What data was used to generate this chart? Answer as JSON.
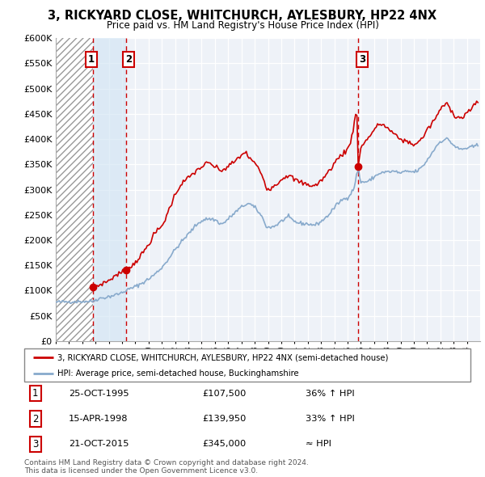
{
  "title": "3, RICKYARD CLOSE, WHITCHURCH, AYLESBURY, HP22 4NX",
  "subtitle": "Price paid vs. HM Land Registry's House Price Index (HPI)",
  "property_label": "3, RICKYARD CLOSE, WHITCHURCH, AYLESBURY, HP22 4NX (semi-detached house)",
  "hpi_label": "HPI: Average price, semi-detached house, Buckinghamshire",
  "footer": "Contains HM Land Registry data © Crown copyright and database right 2024.\nThis data is licensed under the Open Government Licence v3.0.",
  "transactions": [
    {
      "num": 1,
      "date": "25-OCT-1995",
      "price": 107500,
      "year": 1995.82,
      "note": "36% ↑ HPI"
    },
    {
      "num": 2,
      "date": "15-APR-1998",
      "price": 139950,
      "year": 1998.29,
      "note": "33% ↑ HPI"
    },
    {
      "num": 3,
      "date": "21-OCT-2015",
      "price": 345000,
      "year": 2015.81,
      "note": "≈ HPI"
    }
  ],
  "ylim": [
    0,
    600000
  ],
  "xlim_start": 1993.0,
  "xlim_end": 2025.0,
  "hatch_end": 1995.82,
  "shade_start": 1995.82,
  "shade_end": 1998.29,
  "property_color": "#cc0000",
  "hpi_color": "#88aacc",
  "transaction_vline_color": "#cc0000",
  "grid_color": "#cccccc",
  "background_color": "#ffffff",
  "chart_bg": "#f0f4f8"
}
